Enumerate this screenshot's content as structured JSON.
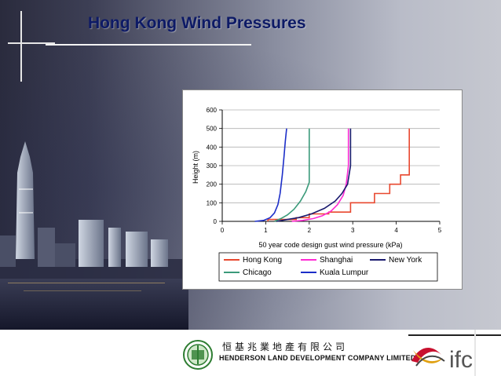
{
  "slide": {
    "title": "Hong Kong Wind Pressures"
  },
  "chart_data": {
    "type": "line",
    "title": "",
    "xlabel": "50 year code design gust wind pressure (kPa)",
    "ylabel": "Height (m)",
    "xlim": [
      0,
      5
    ],
    "ylim": [
      0,
      600
    ],
    "x_ticks": [
      0,
      1,
      2,
      3,
      4,
      5
    ],
    "y_ticks": [
      0,
      100,
      200,
      300,
      400,
      500,
      600
    ],
    "grid": true,
    "legend_position": "bottom",
    "series": [
      {
        "name": "Hong Kong",
        "color": "#e8482f",
        "points": [
          [
            1.05,
            0
          ],
          [
            1.05,
            10
          ],
          [
            1.7,
            10
          ],
          [
            1.7,
            20
          ],
          [
            2.0,
            20
          ],
          [
            2.0,
            40
          ],
          [
            2.45,
            40
          ],
          [
            2.45,
            50
          ],
          [
            2.95,
            50
          ],
          [
            2.95,
            100
          ],
          [
            3.5,
            100
          ],
          [
            3.5,
            150
          ],
          [
            3.85,
            150
          ],
          [
            3.85,
            200
          ],
          [
            4.1,
            200
          ],
          [
            4.1,
            250
          ],
          [
            4.3,
            250
          ],
          [
            4.3,
            500
          ]
        ]
      },
      {
        "name": "Shanghai",
        "color": "#ff2ad4",
        "points": [
          [
            1.6,
            0
          ],
          [
            1.85,
            5
          ],
          [
            2.1,
            15
          ],
          [
            2.3,
            30
          ],
          [
            2.5,
            55
          ],
          [
            2.65,
            90
          ],
          [
            2.78,
            140
          ],
          [
            2.85,
            200
          ],
          [
            2.9,
            300
          ],
          [
            2.9,
            500
          ]
        ]
      },
      {
        "name": "New York",
        "color": "#1a1a6e",
        "points": [
          [
            1.25,
            0
          ],
          [
            1.5,
            10
          ],
          [
            1.75,
            20
          ],
          [
            2.05,
            40
          ],
          [
            2.35,
            70
          ],
          [
            2.6,
            110
          ],
          [
            2.75,
            150
          ],
          [
            2.88,
            200
          ],
          [
            2.95,
            300
          ],
          [
            2.95,
            500
          ]
        ]
      },
      {
        "name": "Chicago",
        "color": "#3b9a7a",
        "points": [
          [
            1.2,
            0
          ],
          [
            1.35,
            15
          ],
          [
            1.5,
            35
          ],
          [
            1.65,
            65
          ],
          [
            1.8,
            110
          ],
          [
            1.92,
            160
          ],
          [
            2.0,
            210
          ],
          [
            2.0,
            500
          ]
        ]
      },
      {
        "name": "Kuala Lumpur",
        "color": "#1c2ec8",
        "points": [
          [
            0.75,
            0
          ],
          [
            0.95,
            5
          ],
          [
            1.1,
            20
          ],
          [
            1.2,
            45
          ],
          [
            1.28,
            90
          ],
          [
            1.33,
            150
          ],
          [
            1.38,
            250
          ],
          [
            1.42,
            350
          ],
          [
            1.45,
            430
          ],
          [
            1.48,
            500
          ]
        ]
      }
    ]
  },
  "footer": {
    "company_cn": "恒基兆業地產有限公司",
    "company_en": "HENDERSON LAND DEVELOPMENT COMPANY LIMITED",
    "brand": "ifc"
  }
}
